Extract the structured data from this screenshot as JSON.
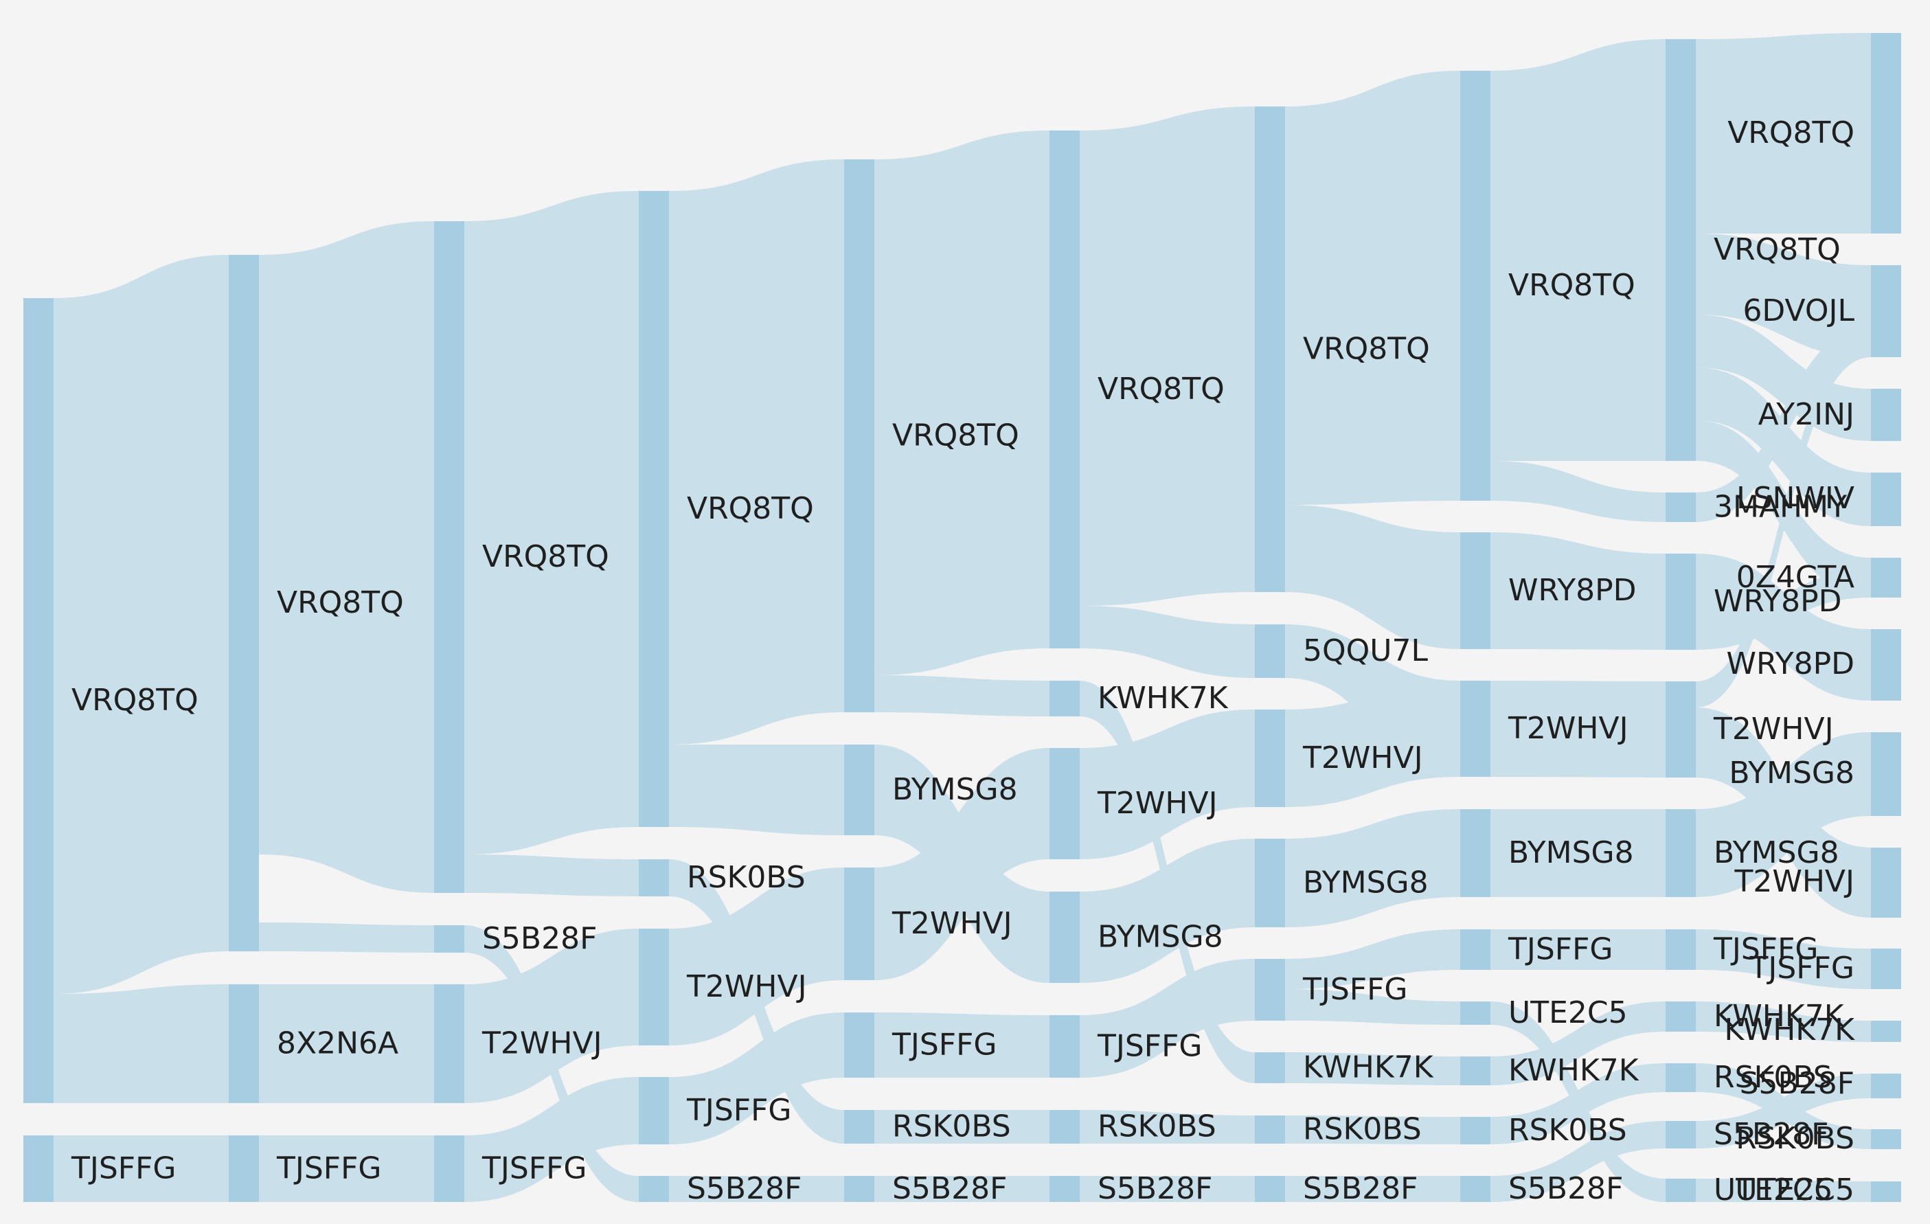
{
  "diagram": {
    "type": "sankey",
    "colors": {
      "background": "#f4f4f4",
      "node": "#a6cde1",
      "link": "#c9dfe9",
      "label": "#1f1f1f"
    },
    "columns": [
      {
        "nodes": [
          {
            "id": "c0_vrq",
            "label": "VRQ8TQ"
          },
          {
            "id": "c0_tjs",
            "label": "TJSFFG"
          }
        ]
      },
      {
        "nodes": [
          {
            "id": "c1_vrq",
            "label": "VRQ8TQ"
          },
          {
            "id": "c1_8x2",
            "label": "8X2N6A"
          },
          {
            "id": "c1_tjs",
            "label": "TJSFFG"
          }
        ]
      },
      {
        "nodes": [
          {
            "id": "c2_vrq",
            "label": "VRQ8TQ"
          },
          {
            "id": "c2_s5b",
            "label": "S5B28F"
          },
          {
            "id": "c2_t2w",
            "label": "T2WHVJ"
          },
          {
            "id": "c2_tjs",
            "label": "TJSFFG"
          }
        ]
      },
      {
        "nodes": [
          {
            "id": "c3_vrq",
            "label": "VRQ8TQ"
          },
          {
            "id": "c3_rsk",
            "label": "RSK0BS"
          },
          {
            "id": "c3_t2w",
            "label": "T2WHVJ"
          },
          {
            "id": "c3_tjs",
            "label": "TJSFFG"
          },
          {
            "id": "c3_s5b",
            "label": "S5B28F"
          }
        ]
      },
      {
        "nodes": [
          {
            "id": "c4_vrq",
            "label": "VRQ8TQ"
          },
          {
            "id": "c4_bym",
            "label": "BYMSG8"
          },
          {
            "id": "c4_t2w",
            "label": "T2WHVJ"
          },
          {
            "id": "c4_tjs",
            "label": "TJSFFG"
          },
          {
            "id": "c4_rsk",
            "label": "RSK0BS"
          },
          {
            "id": "c4_s5b",
            "label": "S5B28F"
          }
        ]
      },
      {
        "nodes": [
          {
            "id": "c5_vrq",
            "label": "VRQ8TQ"
          },
          {
            "id": "c5_kwh",
            "label": "KWHK7K"
          },
          {
            "id": "c5_t2w",
            "label": "T2WHVJ"
          },
          {
            "id": "c5_bym",
            "label": "BYMSG8"
          },
          {
            "id": "c5_tjs",
            "label": "TJSFFG"
          },
          {
            "id": "c5_rsk",
            "label": "RSK0BS"
          },
          {
            "id": "c5_s5b",
            "label": "S5B28F"
          }
        ]
      },
      {
        "nodes": [
          {
            "id": "c6_vrq",
            "label": "VRQ8TQ"
          },
          {
            "id": "c6_5qq",
            "label": "5QQU7L"
          },
          {
            "id": "c6_t2w",
            "label": "T2WHVJ"
          },
          {
            "id": "c6_bym",
            "label": "BYMSG8"
          },
          {
            "id": "c6_tjs",
            "label": "TJSFFG"
          },
          {
            "id": "c6_kwh",
            "label": "KWHK7K"
          },
          {
            "id": "c6_rsk",
            "label": "RSK0BS"
          },
          {
            "id": "c6_s5b",
            "label": "S5B28F"
          }
        ]
      },
      {
        "nodes": [
          {
            "id": "c7_vrq",
            "label": "VRQ8TQ"
          },
          {
            "id": "c7_wry",
            "label": "WRY8PD"
          },
          {
            "id": "c7_t2w",
            "label": "T2WHVJ"
          },
          {
            "id": "c7_bym",
            "label": "BYMSG8"
          },
          {
            "id": "c7_tjs",
            "label": "TJSFFG"
          },
          {
            "id": "c7_ute",
            "label": "UTE2C5"
          },
          {
            "id": "c7_kwh",
            "label": "KWHK7K"
          },
          {
            "id": "c7_rsk",
            "label": "RSK0BS"
          },
          {
            "id": "c7_s5b",
            "label": "S5B28F"
          }
        ]
      },
      {
        "nodes": [
          {
            "id": "c8_vrq",
            "label": "VRQ8TQ"
          },
          {
            "id": "c8_3ma",
            "label": "3MAHMY"
          },
          {
            "id": "c8_wry",
            "label": "WRY8PD"
          },
          {
            "id": "c8_t2w",
            "label": "T2WHVJ"
          },
          {
            "id": "c8_bym",
            "label": "BYMSG8"
          },
          {
            "id": "c8_tjs",
            "label": "TJSFFG"
          },
          {
            "id": "c8_kwh",
            "label": "KWHK7K"
          },
          {
            "id": "c8_rsk",
            "label": "RSK0BS"
          },
          {
            "id": "c8_s5b",
            "label": "S5B28F"
          },
          {
            "id": "c8_ute",
            "label": "UTE2C5"
          }
        ]
      },
      {
        "nodes": [
          {
            "id": "c9_vrq",
            "label": "VRQ8TQ"
          },
          {
            "id": "c9_6dv",
            "label": "6DVOJL"
          },
          {
            "id": "c9_ay2",
            "label": "AY2INJ"
          },
          {
            "id": "c9_lsn",
            "label": "LSNWIV"
          },
          {
            "id": "c9_0z4",
            "label": "0Z4GTA"
          },
          {
            "id": "c9_wry",
            "label": "WRY8PD"
          },
          {
            "id": "c9_bym",
            "label": "BYMSG8"
          },
          {
            "id": "c9_t2w",
            "label": "T2WHVJ"
          },
          {
            "id": "c9_tjs",
            "label": "TJSFFG"
          },
          {
            "id": "c9_kwh",
            "label": "KWHK7K"
          },
          {
            "id": "c9_s5b",
            "label": "S5B28F"
          },
          {
            "id": "c9_rsk",
            "label": "RSK0BS"
          },
          {
            "id": "c9_ute",
            "label": "UTE2C5"
          }
        ]
      }
    ]
  }
}
